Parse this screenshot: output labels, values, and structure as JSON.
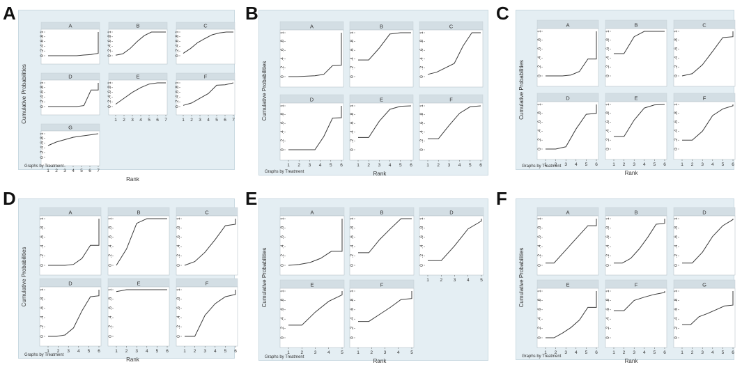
{
  "common": {
    "ylabel": "Cumulative Probabilities",
    "xlabel": "Rank",
    "note": "Graphs by Treatment",
    "yticks": [
      "0",
      ".2",
      ".4",
      ".6",
      ".8",
      "1"
    ]
  },
  "chart_data": [
    {
      "id": "A",
      "type": "line",
      "ylim": [
        0,
        1
      ],
      "ranks": 7,
      "series": [
        {
          "name": "A",
          "values": [
            0,
            0,
            0,
            0,
            0,
            0.03,
            0.05,
            0.1,
            1
          ]
        },
        {
          "name": "B",
          "values": [
            0.02,
            0.08,
            0.3,
            0.6,
            0.85,
            1,
            1,
            1
          ]
        },
        {
          "name": "C",
          "values": [
            0.1,
            0.3,
            0.55,
            0.72,
            0.88,
            0.96,
            1,
            1
          ]
        },
        {
          "name": "D",
          "values": [
            0,
            0,
            0,
            0,
            0,
            0.04,
            0.7,
            0.7,
            1
          ]
        },
        {
          "name": "E",
          "values": [
            0.1,
            0.35,
            0.6,
            0.8,
            0.95,
            1,
            1
          ]
        },
        {
          "name": "F",
          "values": [
            0.05,
            0.15,
            0.35,
            0.55,
            0.9,
            0.92,
            1
          ]
        },
        {
          "name": "G",
          "values": [
            0.5,
            0.65,
            0.75,
            0.85,
            0.9,
            0.95,
            1
          ]
        }
      ]
    },
    {
      "id": "B",
      "type": "line",
      "ylim": [
        0,
        1
      ],
      "ranks": 6,
      "series": [
        {
          "name": "A",
          "values": [
            0,
            0,
            0.01,
            0.02,
            0.05,
            0.25,
            0.26,
            1
          ]
        },
        {
          "name": "B",
          "values": [
            0.38,
            0.38,
            0.65,
            0.97,
            1,
            1
          ]
        },
        {
          "name": "C",
          "values": [
            0.05,
            0.1,
            0.2,
            0.3,
            0.7,
            1,
            1
          ]
        },
        {
          "name": "D",
          "values": [
            0,
            0,
            0,
            0,
            0.3,
            0.72,
            0.73,
            1
          ]
        },
        {
          "name": "E",
          "values": [
            0.28,
            0.28,
            0.65,
            0.92,
            0.99,
            1
          ]
        },
        {
          "name": "F",
          "values": [
            0.25,
            0.25,
            0.55,
            0.83,
            0.98,
            1
          ]
        }
      ]
    },
    {
      "id": "C",
      "type": "line",
      "ylim": [
        0,
        1
      ],
      "ranks": 6,
      "series": [
        {
          "name": "A",
          "values": [
            0,
            0,
            0,
            0.02,
            0.1,
            0.38,
            0.38,
            1
          ]
        },
        {
          "name": "B",
          "values": [
            0.5,
            0.5,
            0.88,
            1,
            1,
            1
          ]
        },
        {
          "name": "C",
          "values": [
            0,
            0.05,
            0.25,
            0.55,
            0.86,
            0.88,
            1
          ]
        },
        {
          "name": "D",
          "values": [
            0,
            0,
            0.05,
            0.45,
            0.78,
            0.8,
            1
          ]
        },
        {
          "name": "E",
          "values": [
            0.28,
            0.28,
            0.65,
            0.92,
            0.99,
            1
          ]
        },
        {
          "name": "F",
          "values": [
            0.2,
            0.2,
            0.4,
            0.75,
            0.9,
            0.97,
            1
          ]
        }
      ]
    },
    {
      "id": "D",
      "type": "line",
      "ylim": [
        0,
        1
      ],
      "ranks": 6,
      "series": [
        {
          "name": "A",
          "values": [
            0,
            0,
            0,
            0.02,
            0.15,
            0.43,
            0.43,
            1
          ]
        },
        {
          "name": "B",
          "values": [
            0,
            0.35,
            0.9,
            1,
            1,
            1
          ]
        },
        {
          "name": "C",
          "values": [
            0,
            0.08,
            0.28,
            0.55,
            0.85,
            0.88,
            1
          ]
        },
        {
          "name": "D",
          "values": [
            0,
            0,
            0.03,
            0.18,
            0.55,
            0.85,
            0.87,
            1
          ]
        },
        {
          "name": "E",
          "values": [
            0.96,
            1,
            1,
            1,
            1,
            1
          ]
        },
        {
          "name": "F",
          "values": [
            0,
            0,
            0.45,
            0.7,
            0.85,
            0.9,
            1
          ]
        }
      ]
    },
    {
      "id": "E",
      "type": "line",
      "ylim": [
        0,
        1
      ],
      "ranks": 5,
      "series": [
        {
          "name": "A",
          "values": [
            0,
            0.02,
            0.06,
            0.15,
            0.3,
            0.3,
            1
          ]
        },
        {
          "name": "B",
          "values": [
            0.27,
            0.27,
            0.55,
            0.78,
            1,
            1
          ]
        },
        {
          "name": "D",
          "values": [
            0.1,
            0.1,
            0.42,
            0.78,
            0.95,
            1
          ]
        },
        {
          "name": "E",
          "values": [
            0.27,
            0.27,
            0.55,
            0.78,
            0.92,
            1
          ]
        },
        {
          "name": "F",
          "values": [
            0.35,
            0.35,
            0.5,
            0.65,
            0.82,
            0.84,
            1
          ]
        }
      ]
    },
    {
      "id": "F",
      "type": "line",
      "ylim": [
        0,
        1
      ],
      "ranks": 6,
      "series": [
        {
          "name": "A",
          "values": [
            0.05,
            0.05,
            0.25,
            0.45,
            0.65,
            0.85,
            0.85,
            1
          ]
        },
        {
          "name": "B",
          "values": [
            0.05,
            0.05,
            0.15,
            0.35,
            0.6,
            0.88,
            0.9,
            1
          ]
        },
        {
          "name": "D",
          "values": [
            0.05,
            0.05,
            0.28,
            0.62,
            0.85,
            0.98,
            1
          ]
        },
        {
          "name": "E",
          "values": [
            0,
            0,
            0.1,
            0.22,
            0.38,
            0.65,
            0.65,
            1
          ]
        },
        {
          "name": "F",
          "values": [
            0.58,
            0.58,
            0.8,
            0.87,
            0.93,
            0.97,
            1
          ]
        },
        {
          "name": "G",
          "values": [
            0.28,
            0.28,
            0.45,
            0.52,
            0.6,
            0.68,
            0.7,
            1
          ]
        }
      ]
    }
  ]
}
